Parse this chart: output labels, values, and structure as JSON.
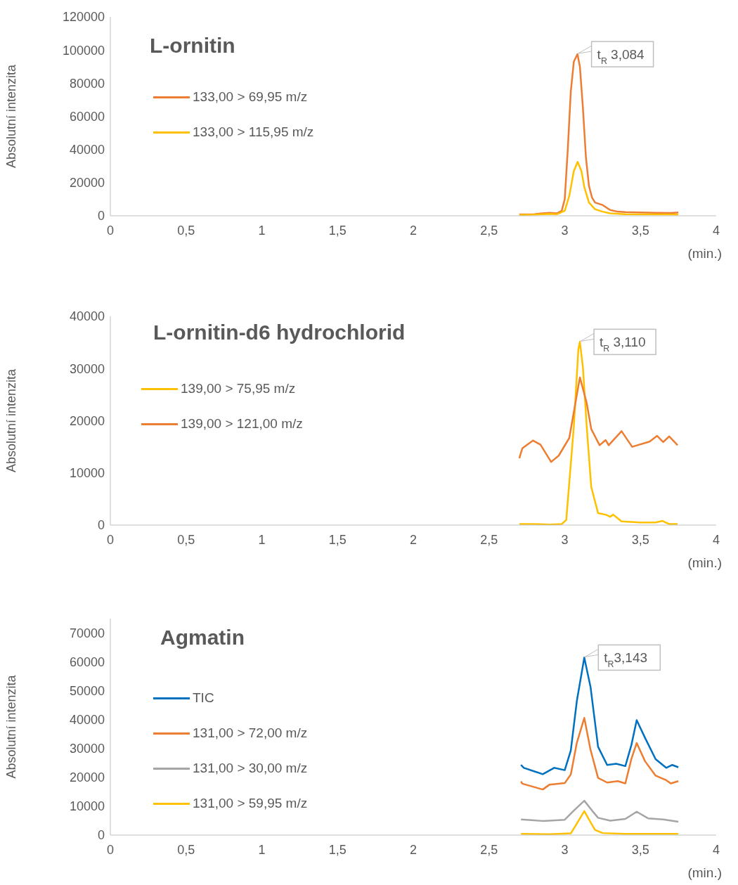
{
  "chart_data": [
    {
      "type": "line",
      "title": "L-ornitin",
      "xlabel": "(min.)",
      "ylabel": "Absolutní intenzita",
      "xlim": [
        0,
        4
      ],
      "ylim": [
        0,
        120000
      ],
      "xticks": [
        0,
        {
          "value": 0.5,
          "label": "0,5"
        },
        1,
        {
          "value": 1.5,
          "label": "1,5"
        },
        2,
        {
          "value": 2.5,
          "label": "2,5"
        },
        3,
        {
          "value": 3.5,
          "label": "3,5"
        },
        4
      ],
      "yticks": [
        0,
        20000,
        40000,
        60000,
        80000,
        100000,
        120000
      ],
      "grid": false,
      "legend": "left",
      "marker": "none",
      "line_style": "solid",
      "annotations": [
        {
          "text": "t$_{R}$ 3,084",
          "x": 3.084,
          "y": 97500
        }
      ],
      "series": [
        {
          "name": "133,00 > 69,95 m/z",
          "color": "#ed7d31",
          "x": [
            2.7,
            2.75,
            2.8,
            2.85,
            2.9,
            2.95,
            2.98,
            3.0,
            3.02,
            3.04,
            3.06,
            3.084,
            3.1,
            3.12,
            3.14,
            3.16,
            3.18,
            3.2,
            3.25,
            3.3,
            3.35,
            3.4,
            3.5,
            3.6,
            3.7,
            3.75
          ],
          "values": [
            800,
            900,
            1000,
            1500,
            1800,
            1500,
            3000,
            10000,
            40000,
            75000,
            93000,
            97500,
            90000,
            65000,
            35000,
            18000,
            11000,
            8000,
            6500,
            3500,
            2500,
            2200,
            2000,
            1800,
            1700,
            2000
          ]
        },
        {
          "name": "133,00 > 115,95 m/z",
          "color": "#ffc000",
          "x": [
            2.7,
            2.8,
            2.9,
            2.95,
            3.0,
            3.03,
            3.06,
            3.085,
            3.11,
            3.13,
            3.16,
            3.2,
            3.25,
            3.3,
            3.4,
            3.5,
            3.6,
            3.75
          ],
          "values": [
            500,
            700,
            1200,
            1000,
            3000,
            12000,
            27000,
            32500,
            27000,
            17000,
            8000,
            4000,
            2500,
            1500,
            1000,
            900,
            800,
            700
          ]
        }
      ]
    },
    {
      "type": "line",
      "title": "L-ornitin-d6 hydrochlorid",
      "xlabel": "(min.)",
      "ylabel": "Absolutní intenzita",
      "xlim": [
        0,
        4
      ],
      "ylim": [
        0,
        40000
      ],
      "xticks": [
        0,
        {
          "value": 0.5,
          "label": "0,5"
        },
        1,
        {
          "value": 1.5,
          "label": "1,5"
        },
        2,
        {
          "value": 2.5,
          "label": "2,5"
        },
        3,
        {
          "value": 3.5,
          "label": "3,5"
        },
        4
      ],
      "yticks": [
        0,
        10000,
        20000,
        30000,
        40000
      ],
      "grid": false,
      "legend": "left",
      "marker": "none",
      "line_style": "solid",
      "annotations": [
        {
          "text": "t$_{R}$ 3,110",
          "x": 3.1,
          "y": 35100
        }
      ],
      "series": [
        {
          "name": "139,00 > 75,95 m/z",
          "color": "#ffc000",
          "x": [
            2.7,
            2.8,
            2.9,
            2.98,
            3.01,
            3.06,
            3.09,
            3.1,
            3.12,
            3.145,
            3.175,
            3.22,
            3.27,
            3.3,
            3.32,
            3.375,
            3.5,
            3.6,
            3.645,
            3.69,
            3.745
          ],
          "values": [
            200,
            200,
            100,
            200,
            1000,
            18900,
            33700,
            35100,
            30200,
            18900,
            7300,
            2300,
            2000,
            1600,
            2000,
            700,
            500,
            500,
            800,
            200,
            200
          ]
        },
        {
          "name": "139,00 > 121,00 m/z",
          "color": "#ed7d31",
          "x": [
            2.7,
            2.72,
            2.79,
            2.84,
            2.91,
            2.96,
            3.03,
            3.1,
            3.145,
            3.175,
            3.23,
            3.27,
            3.29,
            3.375,
            3.445,
            3.56,
            3.61,
            3.65,
            3.69,
            3.745
          ],
          "values": [
            12800,
            14700,
            16200,
            15400,
            12100,
            13300,
            16700,
            28300,
            23400,
            18400,
            15300,
            16300,
            15300,
            18000,
            15000,
            16000,
            17100,
            15900,
            17000,
            15300
          ]
        }
      ]
    },
    {
      "type": "line",
      "title": "Agmatin",
      "xlabel": "(min.)",
      "ylabel": "Absolutní intenzita",
      "xlim": [
        0,
        4
      ],
      "ylim": [
        0,
        75000
      ],
      "xticks": [
        0,
        {
          "value": 0.5,
          "label": "0,5"
        },
        1,
        {
          "value": 1.5,
          "label": "1,5"
        },
        2,
        {
          "value": 2.5,
          "label": "2,5"
        },
        3,
        {
          "value": 3.5,
          "label": "3,5"
        },
        4
      ],
      "yticks": [
        0,
        10000,
        20000,
        30000,
        40000,
        50000,
        60000,
        70000
      ],
      "grid": false,
      "legend": "left",
      "marker": "none",
      "line_style": "solid",
      "annotations": [
        {
          "text": "t$_{R}$3,143",
          "x": 3.129,
          "y": 61500
        }
      ],
      "series": [
        {
          "name": "TIC",
          "color": "#0070c0",
          "x": [
            2.711,
            2.73,
            2.855,
            2.93,
            3.0,
            3.04,
            3.08,
            3.129,
            3.17,
            3.22,
            3.28,
            3.34,
            3.4,
            3.44,
            3.475,
            3.53,
            3.6,
            3.67,
            3.71,
            3.75
          ],
          "values": [
            24300,
            23300,
            21100,
            23300,
            22500,
            29300,
            46500,
            61500,
            51400,
            30600,
            24300,
            24700,
            23900,
            31200,
            39800,
            33700,
            26300,
            23300,
            24300,
            23500
          ]
        },
        {
          "name": "131,00 > 72,00 m/z",
          "color": "#ed7d31",
          "x": [
            2.711,
            2.72,
            2.855,
            2.9,
            3.0,
            3.04,
            3.08,
            3.129,
            3.17,
            3.22,
            3.28,
            3.35,
            3.4,
            3.44,
            3.475,
            3.53,
            3.6,
            3.67,
            3.7,
            3.75
          ],
          "values": [
            18600,
            17800,
            15800,
            17500,
            18000,
            21000,
            32000,
            40600,
            29600,
            19800,
            18200,
            18700,
            17900,
            26400,
            31900,
            25600,
            20600,
            19000,
            17900,
            18700
          ]
        },
        {
          "name": "131,00 > 30,00 m/z",
          "color": "#a5a5a5",
          "x": [
            2.711,
            2.855,
            3.0,
            3.06,
            3.129,
            3.18,
            3.22,
            3.3,
            3.4,
            3.475,
            3.55,
            3.65,
            3.75
          ],
          "values": [
            5400,
            4900,
            5300,
            8500,
            11900,
            8500,
            6000,
            5000,
            5600,
            8100,
            5800,
            5400,
            4600
          ]
        },
        {
          "name": "131,00 > 59,95 m/z",
          "color": "#ffc000",
          "x": [
            2.711,
            2.9,
            3.04,
            3.08,
            3.129,
            3.17,
            3.2,
            3.25,
            3.4,
            3.75
          ],
          "values": [
            400,
            300,
            600,
            4000,
            8300,
            4500,
            1800,
            700,
            400,
            400
          ]
        }
      ]
    }
  ]
}
